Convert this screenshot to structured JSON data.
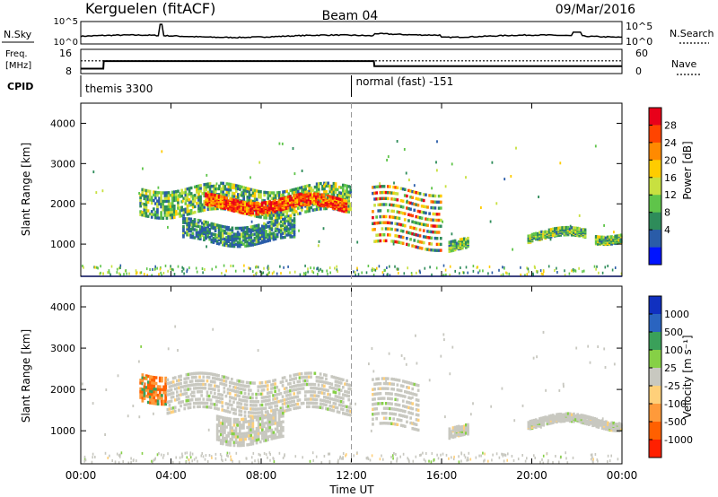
{
  "header": {
    "station": "Kerguelen (fitACF)",
    "beam": "Beam 04",
    "date": "09/Mar/2016"
  },
  "top_panels": {
    "nsky_label": "N.Sky",
    "nsearch_label": "N.Search",
    "freq_label_line1": "Freq.",
    "freq_label_line2": "[MHz]",
    "nave_label": "Nave",
    "cpid_label": "CPID",
    "nsky_ticks": [
      "10^5",
      "10^0"
    ],
    "nsearch_ticks": [
      "10^5",
      "10^0"
    ],
    "freq_ticks": [
      "16",
      "8"
    ],
    "nave_ticks": [
      "60",
      "0"
    ],
    "cpid_segments": [
      {
        "start_hour": 0,
        "end_hour": 12,
        "name": "themis 3300"
      },
      {
        "start_hour": 12,
        "end_hour": 24,
        "name": "normal (fast) -151"
      }
    ],
    "freq_series": {
      "hours": [
        0,
        0.05,
        1,
        1.02,
        13,
        13.02,
        24
      ],
      "mhz": [
        9.5,
        9.5,
        9.5,
        12.3,
        12.3,
        10.4,
        10.4
      ]
    },
    "nave_series": {
      "hours": [
        0,
        24
      ],
      "value": [
        33,
        33
      ]
    }
  },
  "chart_data": [
    {
      "type": "heatmap",
      "name": "power",
      "ylabel": "Slant Range [km]",
      "ylim": [
        200,
        4500
      ],
      "yticks": [
        1000,
        2000,
        3000,
        4000
      ],
      "xlim": [
        0,
        24
      ],
      "colorbar": {
        "label": "Power [dB]",
        "ticks": [
          "28",
          "24",
          "20",
          "16",
          "12",
          "8",
          "4"
        ],
        "colors": [
          "#e8001a",
          "#ff4400",
          "#ff8a00",
          "#ffcc00",
          "#c8e040",
          "#5fc44a",
          "#2e8c5a",
          "#2a5ca8",
          "#0014ff"
        ]
      },
      "regions": [
        {
          "start_hour": 2.6,
          "end_hour": 12.0,
          "range_km": [
            1800,
            2500
          ],
          "level": "green"
        },
        {
          "start_hour": 5.5,
          "end_hour": 11.8,
          "range_km": [
            1900,
            2200
          ],
          "level": "orange-red"
        },
        {
          "start_hour": 4.5,
          "end_hour": 9.5,
          "range_km": [
            1100,
            1600
          ],
          "level": "blue-green"
        },
        {
          "start_hour": 12.9,
          "end_hour": 16.0,
          "range_km": [
            1000,
            2500
          ],
          "level": "mixed"
        },
        {
          "start_hour": 16.3,
          "end_hour": 17.2,
          "range_km": [
            850,
            1100
          ],
          "level": "green"
        },
        {
          "start_hour": 19.8,
          "end_hour": 22.4,
          "range_km": [
            1150,
            1350
          ],
          "level": "green"
        },
        {
          "start_hour": 22.8,
          "end_hour": 24.0,
          "range_km": [
            1150,
            1350
          ],
          "level": "green"
        }
      ]
    },
    {
      "type": "heatmap",
      "name": "velocity",
      "ylabel": "Slant Range [km]",
      "xlabel": "Time UT",
      "ylim": [
        200,
        4500
      ],
      "yticks": [
        1000,
        2000,
        3000,
        4000
      ],
      "xlim": [
        0,
        24
      ],
      "xticks": [
        "00:00",
        "04:00",
        "08:00",
        "12:00",
        "16:00",
        "20:00",
        "00:00"
      ],
      "colorbar": {
        "label": "Velocity [m s⁻¹]",
        "ticks": [
          "1000",
          "500",
          "100",
          "25",
          "-25",
          "-100",
          "-500",
          "-1000"
        ],
        "colors": [
          "#1030c0",
          "#2a64c0",
          "#3aa05a",
          "#86d046",
          "#c8c8c0",
          "#ffd07a",
          "#ff9a3a",
          "#ff6000",
          "#ff2000"
        ]
      },
      "regions": [
        {
          "start_hour": 2.6,
          "end_hour": 3.8,
          "range_km": [
            1800,
            2500
          ],
          "level": "orange"
        },
        {
          "start_hour": 3.8,
          "end_hour": 12.0,
          "range_km": [
            1500,
            2400
          ],
          "level": "gray"
        },
        {
          "start_hour": 6.0,
          "end_hour": 9.0,
          "range_km": [
            800,
            1500
          ],
          "level": "gray"
        },
        {
          "start_hour": 12.9,
          "end_hour": 15.0,
          "range_km": [
            1100,
            2300
          ],
          "level": "gray"
        },
        {
          "start_hour": 16.3,
          "end_hour": 17.2,
          "range_km": [
            850,
            1100
          ],
          "level": "gray"
        },
        {
          "start_hour": 19.8,
          "end_hour": 24.0,
          "range_km": [
            1150,
            1350
          ],
          "level": "gray"
        }
      ]
    }
  ]
}
